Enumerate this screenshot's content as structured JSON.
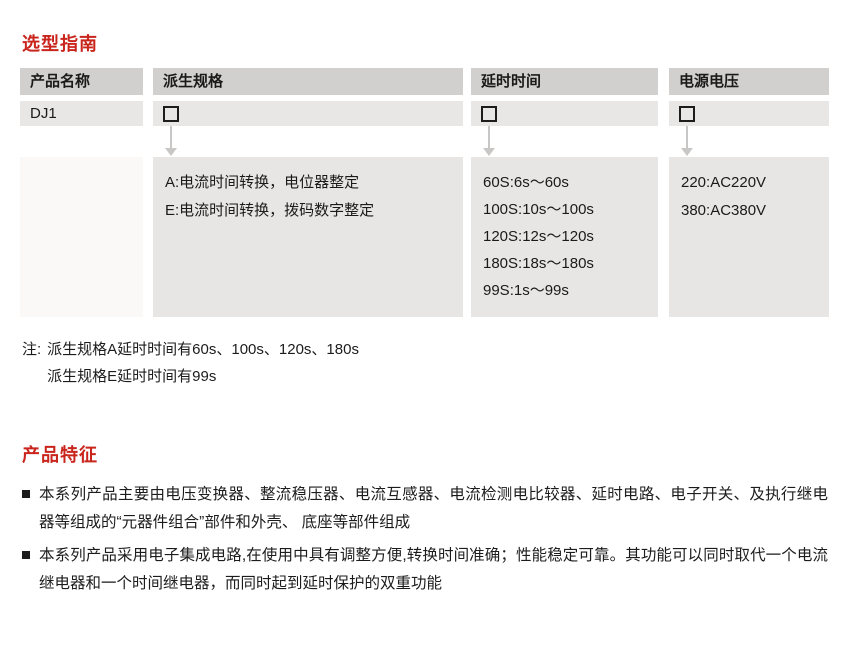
{
  "titles": {
    "selection_guide": "选型指南",
    "product_features": "产品特征"
  },
  "table": {
    "headers": {
      "product_name": "产品名称",
      "derived_spec": "派生规格",
      "delay_time": "延时时间",
      "supply_voltage": "电源电压"
    },
    "row": {
      "product_name": "DJ1",
      "checkbox_symbol": "derived-spec-placeholder"
    },
    "derived_spec_options": [
      "A:电流时间转换，电位器整定",
      "E:电流时间转换，拨码数字整定"
    ],
    "delay_time_options": [
      "60S:6s～60s",
      "100S:10s～100s",
      "120S:12s～120s",
      "180S:18s～180s",
      "99S:1s～99s"
    ],
    "supply_voltage_options": [
      "220:AC220V",
      "380:AC380V"
    ]
  },
  "note": {
    "prefix": "注:",
    "line1": "派生规格A延时时间有60s、100s、120s、180s",
    "line2": "派生规格E延时时间有99s"
  },
  "features": [
    "本系列产品主要由电压变换器、整流稳压器、电流互感器、电流检测电比较器、延时电路、电子开关、及执行继电器等组成的“元器件组合”部件和外壳、 底座等部件组成",
    "本系列产品采用电子集成电路,在使用中具有调整方便,转换时间准确；性能稳定可靠。其功能可以同时取代一个电流继电器和一个时间继电器，而同时起到延时保护的双重功能"
  ],
  "colors": {
    "accent_red": "#c9251d",
    "table_header_bg": "#d2d0cf",
    "table_row_bg": "#e9e7e6",
    "content_box_bg": "#e8e6e4",
    "arrow_gray": "#c9c7c5"
  }
}
